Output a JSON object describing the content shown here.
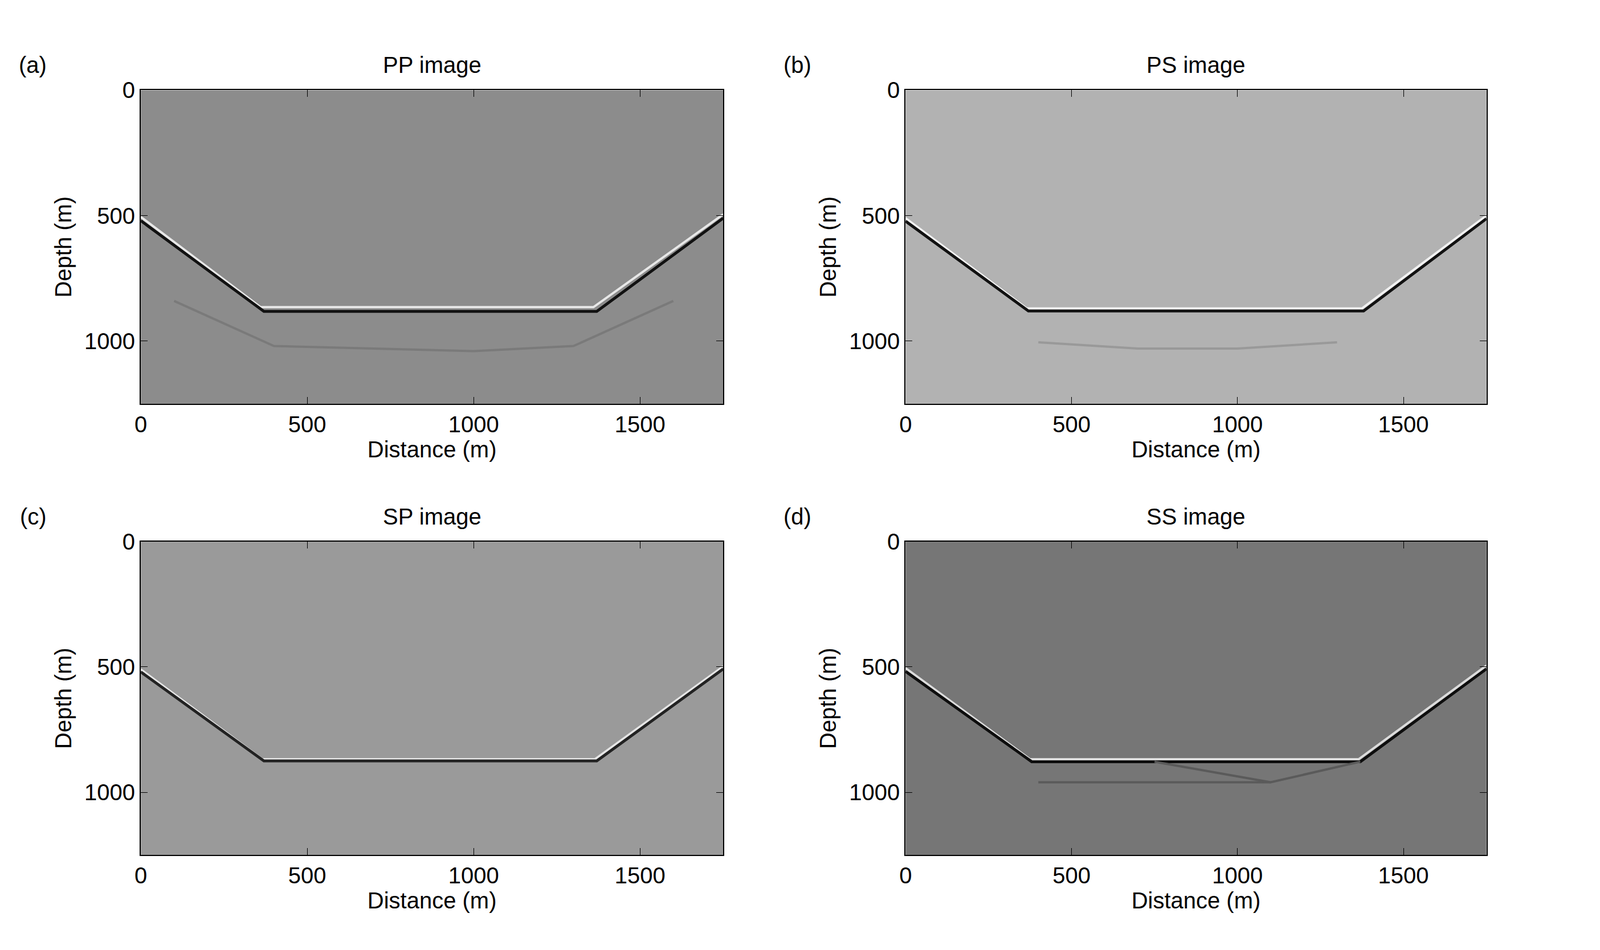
{
  "chart_data": [
    {
      "type": "line",
      "panel": "(a)",
      "title": "PP image",
      "x_label": "Distance (m)",
      "y_label": "Depth (m)",
      "xlim": [
        0,
        1750
      ],
      "ylim": [
        1250,
        0
      ],
      "xticks": [
        0,
        500,
        1000,
        1500
      ],
      "yticks": [
        0,
        500,
        1000
      ],
      "grid": false,
      "series": [
        {
          "color": "#e8e8e8",
          "x": [
            0,
            360,
            1360,
            1750
          ],
          "y": [
            505,
            865,
            865,
            495
          ]
        },
        {
          "color": "#111111",
          "x": [
            0,
            370,
            1370,
            1750
          ],
          "y": [
            520,
            882,
            882,
            510
          ]
        },
        {
          "color": "#7a7a7a",
          "x": [
            100,
            400,
            1000,
            1300,
            1600
          ],
          "y": [
            840,
            1020,
            1040,
            1020,
            840
          ]
        }
      ]
    },
    {
      "type": "line",
      "panel": "(b)",
      "title": "PS image",
      "x_label": "Distance (m)",
      "y_label": "Depth (m)",
      "xlim": [
        0,
        1750
      ],
      "ylim": [
        1250,
        0
      ],
      "xticks": [
        0,
        500,
        1000,
        1500
      ],
      "yticks": [
        0,
        500,
        1000
      ],
      "grid": false,
      "series": [
        {
          "color": "#f2f2f2",
          "x": [
            0,
            365,
            1375,
            1750
          ],
          "y": [
            510,
            870,
            870,
            500
          ]
        },
        {
          "color": "#111111",
          "x": [
            0,
            370,
            1380,
            1750
          ],
          "y": [
            522,
            880,
            880,
            512
          ]
        },
        {
          "color": "#999999",
          "x": [
            400,
            700,
            1000,
            1300
          ],
          "y": [
            1005,
            1030,
            1030,
            1005
          ]
        }
      ]
    },
    {
      "type": "line",
      "panel": "(c)",
      "title": "SP image",
      "x_label": "Distance (m)",
      "y_label": "Depth (m)",
      "xlim": [
        0,
        1750
      ],
      "ylim": [
        1250,
        0
      ],
      "xticks": [
        0,
        500,
        1000,
        1500
      ],
      "yticks": [
        0,
        500,
        1000
      ],
      "grid": false,
      "series": [
        {
          "color": "#e6e6e6",
          "x": [
            0,
            365,
            1365,
            1750
          ],
          "y": [
            510,
            868,
            868,
            498
          ]
        },
        {
          "color": "#222222",
          "x": [
            0,
            370,
            1370,
            1750
          ],
          "y": [
            520,
            875,
            875,
            508
          ]
        }
      ]
    },
    {
      "type": "line",
      "panel": "(d)",
      "title": "SS image",
      "x_label": "Distance (m)",
      "y_label": "Depth (m)",
      "xlim": [
        0,
        1750
      ],
      "ylim": [
        1250,
        0
      ],
      "xticks": [
        0,
        500,
        1000,
        1500
      ],
      "yticks": [
        0,
        500,
        1000
      ],
      "grid": false,
      "series": [
        {
          "color": "#dcdcdc",
          "x": [
            0,
            375,
            1365,
            1750
          ],
          "y": [
            505,
            868,
            868,
            495
          ]
        },
        {
          "color": "#0d0d0d",
          "x": [
            0,
            380,
            1370,
            1750
          ],
          "y": [
            518,
            878,
            878,
            508
          ]
        },
        {
          "color": "#5a5a5a",
          "x": [
            400,
            1100,
            1370
          ],
          "y": [
            960,
            960,
            878
          ]
        },
        {
          "color": "#5a5a5a",
          "x": [
            750,
            1100
          ],
          "y": [
            878,
            960
          ]
        }
      ]
    }
  ]
}
